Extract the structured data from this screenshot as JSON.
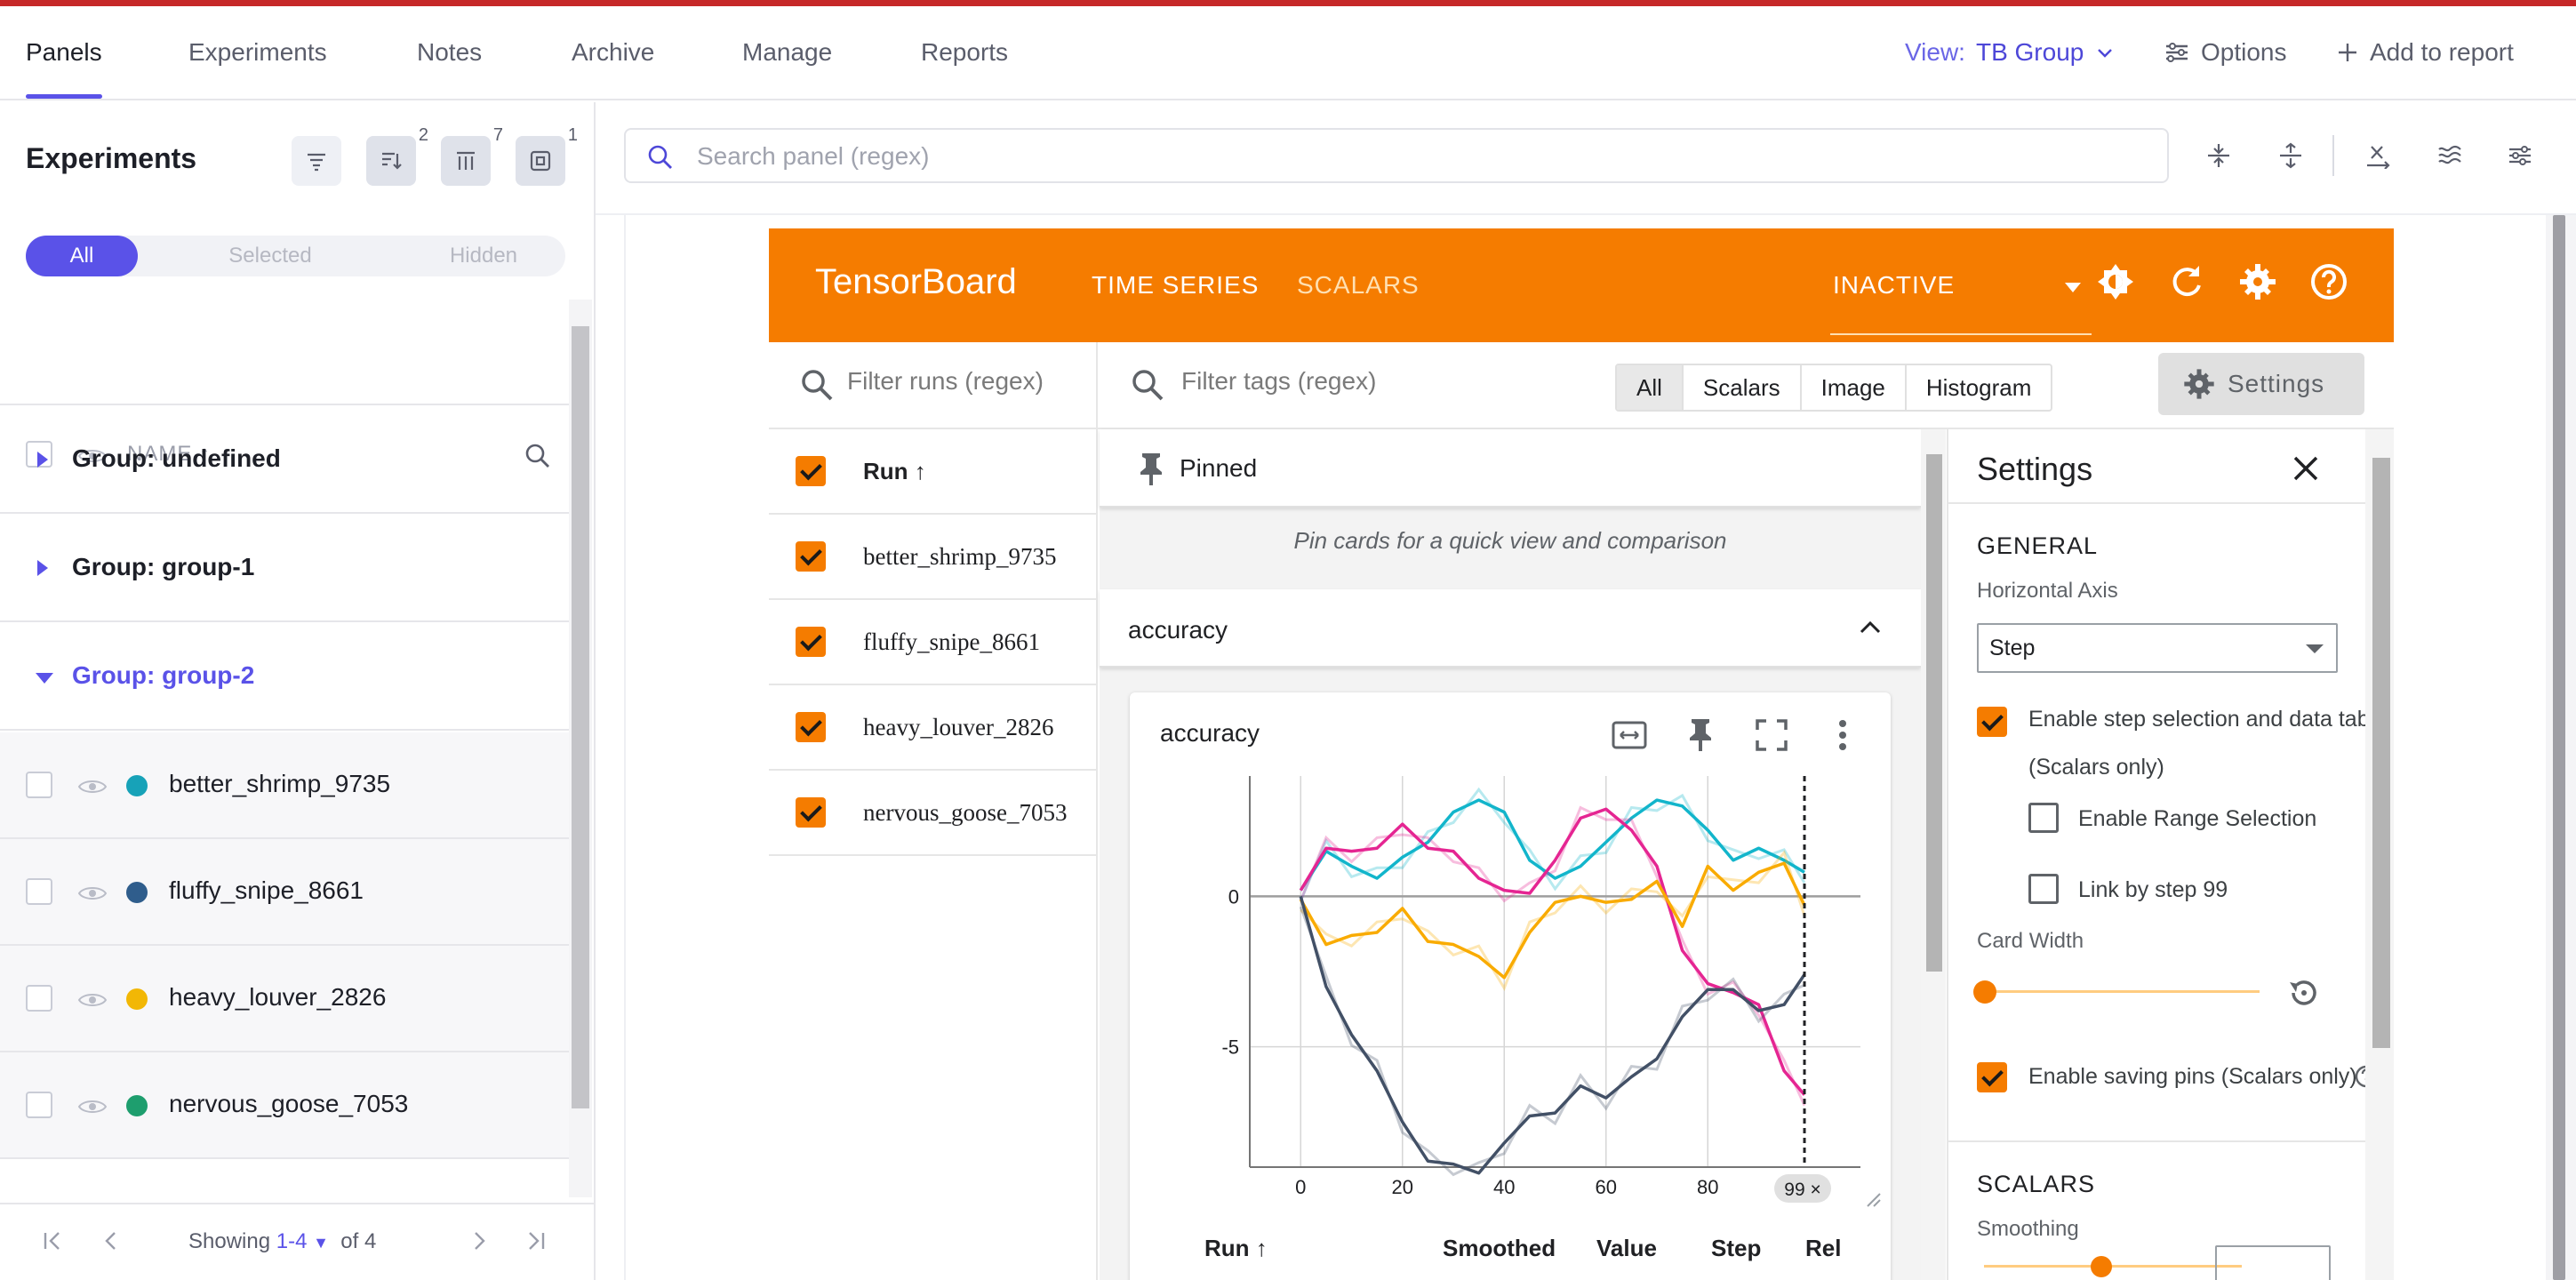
{
  "nav": {
    "tabs": [
      "Panels",
      "Experiments",
      "Notes",
      "Archive",
      "Manage",
      "Reports"
    ],
    "view_label": "View:",
    "view_value": "TB Group",
    "options": "Options",
    "add_to_report": "Add to report"
  },
  "sidebar": {
    "title": "Experiments",
    "tool_badges": [
      "2",
      "7",
      "1"
    ],
    "segments": [
      "All",
      "Selected",
      "Hidden"
    ],
    "name_header": "NAME",
    "groups": [
      {
        "label": "Group: undefined",
        "open": false
      },
      {
        "label": "Group: group-1",
        "open": false
      },
      {
        "label": "Group: group-2",
        "open": true
      }
    ],
    "runs": [
      {
        "name": "better_shrimp_9735",
        "color": "#17a2b8"
      },
      {
        "name": "fluffy_snipe_8661",
        "color": "#2f5d8c"
      },
      {
        "name": "heavy_louver_2826",
        "color": "#f2b705"
      },
      {
        "name": "nervous_goose_7053",
        "color": "#1e9e6e"
      }
    ],
    "pager": {
      "prefix": "Showing",
      "range": "1-4",
      "suffix": "of 4"
    }
  },
  "search": {
    "placeholder": "Search panel (regex)"
  },
  "tensorboard": {
    "brand": "TensorBoard",
    "tabs": [
      "TIME SERIES",
      "SCALARS"
    ],
    "status": "INACTIVE",
    "accent": "#f57c00",
    "filter_runs_placeholder": "Filter runs (regex)",
    "filter_tags_placeholder": "Filter tags (regex)",
    "type_filters": [
      "All",
      "Scalars",
      "Image",
      "Histogram"
    ],
    "settings_button": "Settings",
    "runs_header": "Run",
    "runs": [
      "better_shrimp_9735",
      "fluffy_snipe_8661",
      "heavy_louver_2826",
      "nervous_goose_7053"
    ],
    "pinned_label": "Pinned",
    "pinned_hint": "Pin cards for a quick view and comparison",
    "group_label": "accuracy",
    "card_title": "accuracy",
    "step_marker": "99 ×",
    "table_headers": [
      "Run",
      "Smoothed",
      "Value",
      "Step",
      "Rel"
    ]
  },
  "settings": {
    "title": "Settings",
    "general": "GENERAL",
    "horizontal_axis_label": "Horizontal Axis",
    "horizontal_axis_value": "Step",
    "enable_step_selection": "Enable step selection and data table",
    "scalars_only": "(Scalars only)",
    "enable_range_selection": "Enable Range Selection",
    "link_by_step": "Link by step 99",
    "card_width": "Card Width",
    "enable_saving_pins": "Enable saving pins (Scalars only)",
    "scalars_section": "SCALARS",
    "smoothing": "Smoothing"
  },
  "chart_data": {
    "type": "line",
    "title": "accuracy",
    "xlabel": "",
    "ylabel": "",
    "xlim": [
      -10,
      110
    ],
    "ylim": [
      -9,
      4
    ],
    "x_ticks": [
      0,
      20,
      40,
      60,
      80
    ],
    "y_ticks": [
      0,
      -5
    ],
    "step_marker": 99,
    "x": [
      0,
      5,
      10,
      15,
      20,
      25,
      30,
      35,
      40,
      45,
      50,
      55,
      60,
      65,
      70,
      75,
      80,
      85,
      90,
      95,
      99
    ],
    "series": [
      {
        "color": "#12b5cb",
        "values": [
          0.2,
          1.5,
          1.0,
          0.6,
          1.3,
          1.8,
          2.8,
          3.2,
          2.8,
          1.2,
          0.6,
          1.0,
          1.8,
          2.6,
          3.2,
          3.0,
          2.2,
          1.2,
          1.6,
          1.2,
          0.8
        ]
      },
      {
        "color": "#e52592",
        "values": [
          0.2,
          1.6,
          1.5,
          1.6,
          2.4,
          1.6,
          1.5,
          0.6,
          0.2,
          0.1,
          1.2,
          2.6,
          2.9,
          2.2,
          1.0,
          -1.8,
          -2.9,
          -3.2,
          -3.6,
          -5.8,
          -6.6
        ]
      },
      {
        "color": "#f9ab00",
        "values": [
          -0.1,
          -1.6,
          -1.3,
          -1.2,
          -0.4,
          -1.5,
          -1.6,
          -2.0,
          -2.7,
          -1.2,
          -0.2,
          0.0,
          -0.2,
          -0.1,
          0.5,
          -1.0,
          1.0,
          0.2,
          0.8,
          1.1,
          -0.3
        ]
      },
      {
        "color": "#425066",
        "values": [
          0.0,
          -3.0,
          -4.6,
          -5.8,
          -7.5,
          -8.8,
          -8.9,
          -9.2,
          -8.2,
          -7.3,
          -7.2,
          -6.3,
          -6.7,
          -6.0,
          -5.4,
          -4.0,
          -3.1,
          -3.1,
          -3.8,
          -3.6,
          -2.6
        ]
      }
    ]
  }
}
